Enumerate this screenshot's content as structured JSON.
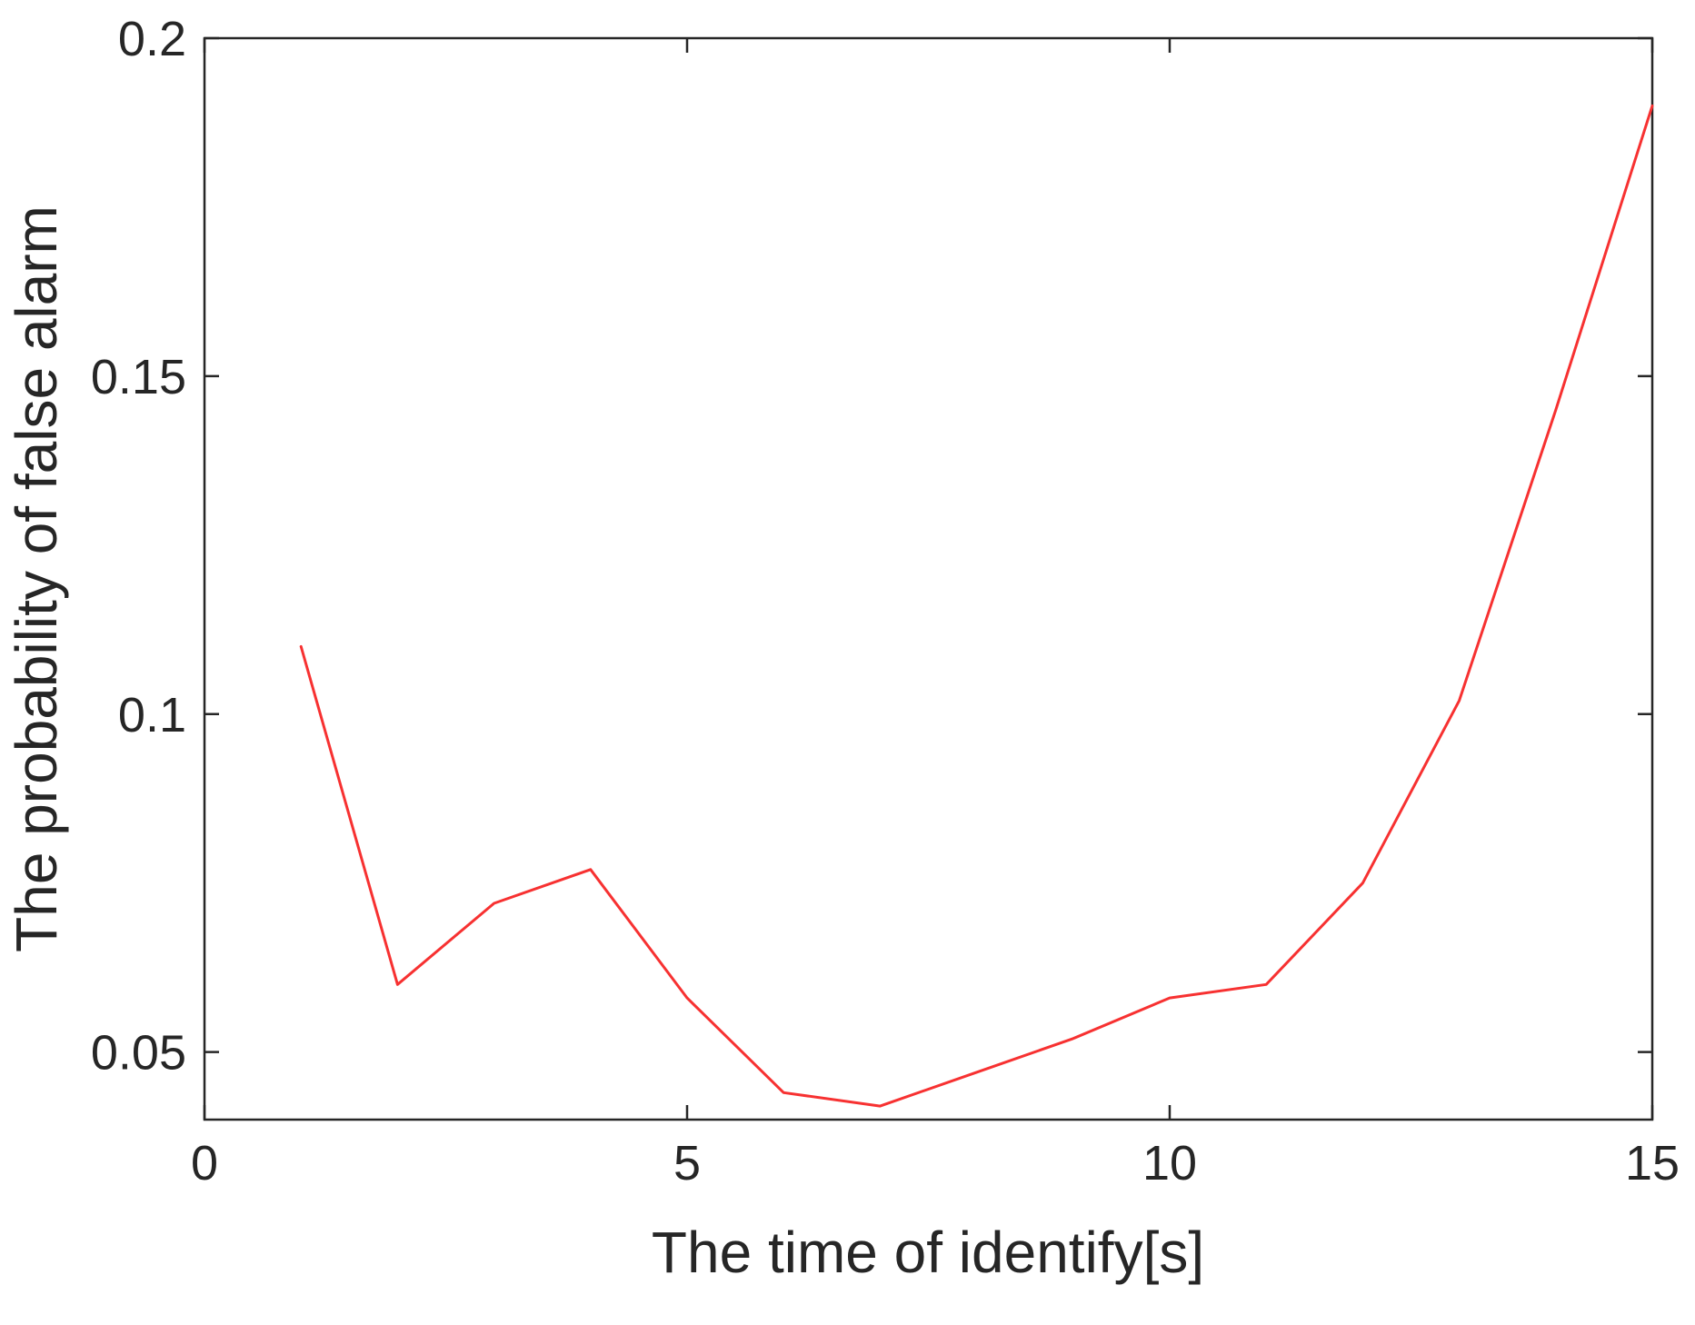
{
  "figure": {
    "background": "#ffffff",
    "axis_color": "#262626",
    "text_color": "#262626"
  },
  "chart_data": {
    "type": "line",
    "title": "",
    "xlabel": "The time of identify[s]",
    "ylabel": "The probability of false alarm",
    "x": [
      1,
      2,
      3,
      4,
      5,
      6,
      7,
      8,
      9,
      10,
      11,
      12,
      13,
      14,
      15
    ],
    "values": [
      0.11,
      0.06,
      0.072,
      0.077,
      0.058,
      0.044,
      0.042,
      0.047,
      0.052,
      0.058,
      0.06,
      0.075,
      0.102,
      0.145,
      0.19
    ],
    "xlim": [
      0,
      15
    ],
    "ylim": [
      0.04,
      0.2
    ],
    "xticks": [
      0,
      5,
      10,
      15
    ],
    "xtick_labels": [
      "0",
      "5",
      "10",
      "15"
    ],
    "yticks": [
      0.05,
      0.1,
      0.15,
      0.2
    ],
    "ytick_labels": [
      "0.05",
      "0.1",
      "0.15",
      "0.2"
    ],
    "line_color": "#f73131",
    "grid": false,
    "legend": "none"
  }
}
